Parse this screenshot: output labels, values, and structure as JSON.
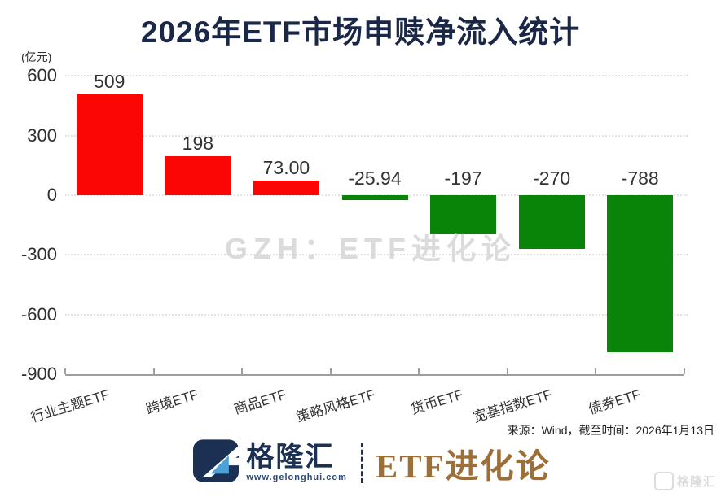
{
  "chart_data": {
    "type": "bar",
    "title": "2026年ETF市场申赎净流入统计",
    "unit_label": "(亿元)",
    "categories": [
      "行业主题ETF",
      "跨境ETF",
      "商品ETF",
      "策略风格ETF",
      "货币ETF",
      "宽基指数ETF",
      "债券ETF"
    ],
    "values": [
      509,
      198,
      73.0,
      -25.94,
      -197,
      -270,
      -788
    ],
    "value_labels": [
      "509",
      "198",
      "73.00",
      "-25.94",
      "-197",
      "-270",
      "-788"
    ],
    "y_ticks": [
      600,
      300,
      0,
      -300,
      -600,
      -900
    ],
    "ylim": [
      -900,
      600
    ],
    "xlabel": "",
    "ylabel": "",
    "grid": "horizontal-dotted",
    "legend": "none",
    "positive_color": "#fb0505",
    "negative_color": "#098409"
  },
  "watermarks": {
    "center": "GZH：ETF进化论",
    "corner": "格隆汇"
  },
  "source_note": "来源：Wind，截至时间：2026年1月13日",
  "footer": {
    "brand_name": "格隆汇",
    "brand_url": "www.gelonghui.com",
    "series_name": "ETF进化论",
    "navy": "#1b3053",
    "accent_blue": "#4da0d8",
    "bronze": "#9c6f38"
  }
}
